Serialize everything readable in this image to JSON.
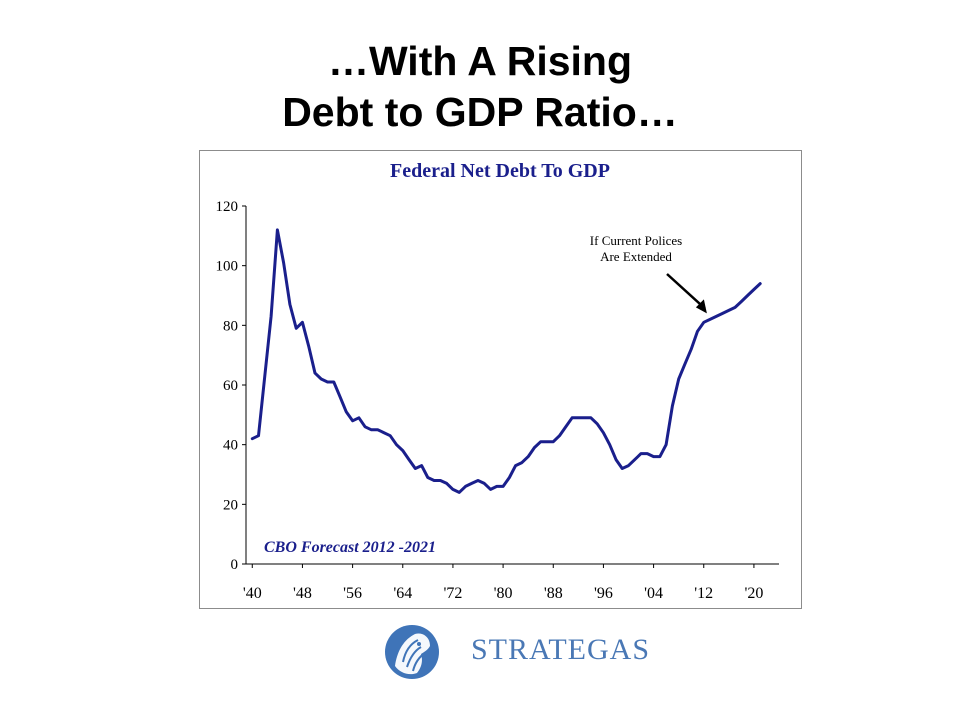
{
  "slide": {
    "title_line1": "…With A Rising",
    "title_line2": "Debt to GDP Ratio…"
  },
  "logo": {
    "text": "STRATEGAS"
  },
  "colors": {
    "line": "#1a1f8c",
    "chart_title": "#1a1f8c",
    "forecast_label": "#1a1f8c",
    "axis": "#000000",
    "logo": "#4a78b5"
  },
  "chart_data": {
    "type": "line",
    "title": "Federal Net Debt To GDP",
    "xlabel": "",
    "ylabel": "",
    "xlim": [
      1939,
      2024
    ],
    "ylim": [
      0,
      120
    ],
    "grid": false,
    "legend": "none",
    "x_ticks": [
      1940,
      1948,
      1956,
      1964,
      1972,
      1980,
      1988,
      1996,
      2004,
      2012,
      2020
    ],
    "x_tick_labels": [
      "'40",
      "'48",
      "'56",
      "'64",
      "'72",
      "'80",
      "'88",
      "'96",
      "'04",
      "'12",
      "'20"
    ],
    "y_ticks": [
      0,
      20,
      40,
      60,
      80,
      100,
      120
    ],
    "y_tick_labels": [
      "0",
      "20",
      "40",
      "60",
      "80",
      "100",
      "120"
    ],
    "annotations": [
      {
        "text_line1": "If Current Polices",
        "text_line2": "Are Extended",
        "arrow_to_x": 2012.5,
        "arrow_to_y": 84
      },
      {
        "text": "CBO Forecast 2012 -2021"
      }
    ],
    "series": [
      {
        "values_x": [
          1940,
          1941,
          1942,
          1943,
          1944,
          1945,
          1946,
          1947,
          1948,
          1949,
          1950,
          1951,
          1952,
          1953,
          1954,
          1955,
          1956,
          1957,
          1958,
          1959,
          1960,
          1961,
          1962,
          1963,
          1964,
          1965,
          1966,
          1967,
          1968,
          1969,
          1970,
          1971,
          1972,
          1973,
          1974,
          1975,
          1976,
          1977,
          1978,
          1979,
          1980,
          1981,
          1982,
          1983,
          1984,
          1985,
          1986,
          1987,
          1988,
          1989,
          1990,
          1991,
          1992,
          1993,
          1994,
          1995,
          1996,
          1997,
          1998,
          1999,
          2000,
          2001,
          2002,
          2003,
          2004,
          2005,
          2006,
          2007,
          2008,
          2009,
          2010,
          2011,
          2012,
          2013,
          2014,
          2015,
          2016,
          2017,
          2018,
          2019,
          2020,
          2021
        ],
        "values_y": [
          42,
          43,
          63,
          83,
          112,
          101,
          87,
          79,
          81,
          73,
          64,
          62,
          61,
          61,
          56,
          51,
          48,
          49,
          46,
          45,
          45,
          44,
          43,
          40,
          38,
          35,
          32,
          33,
          29,
          28,
          28,
          27,
          25,
          24,
          26,
          27,
          28,
          27,
          25,
          26,
          26,
          29,
          33,
          34,
          36,
          39,
          41,
          41,
          41,
          43,
          46,
          49,
          49,
          49,
          49,
          47,
          44,
          40,
          35,
          32,
          33,
          35,
          37,
          37,
          36,
          36,
          40,
          53,
          62,
          67,
          72,
          78,
          81,
          82,
          83,
          84,
          85,
          86,
          88,
          90,
          92,
          94
        ]
      }
    ]
  }
}
